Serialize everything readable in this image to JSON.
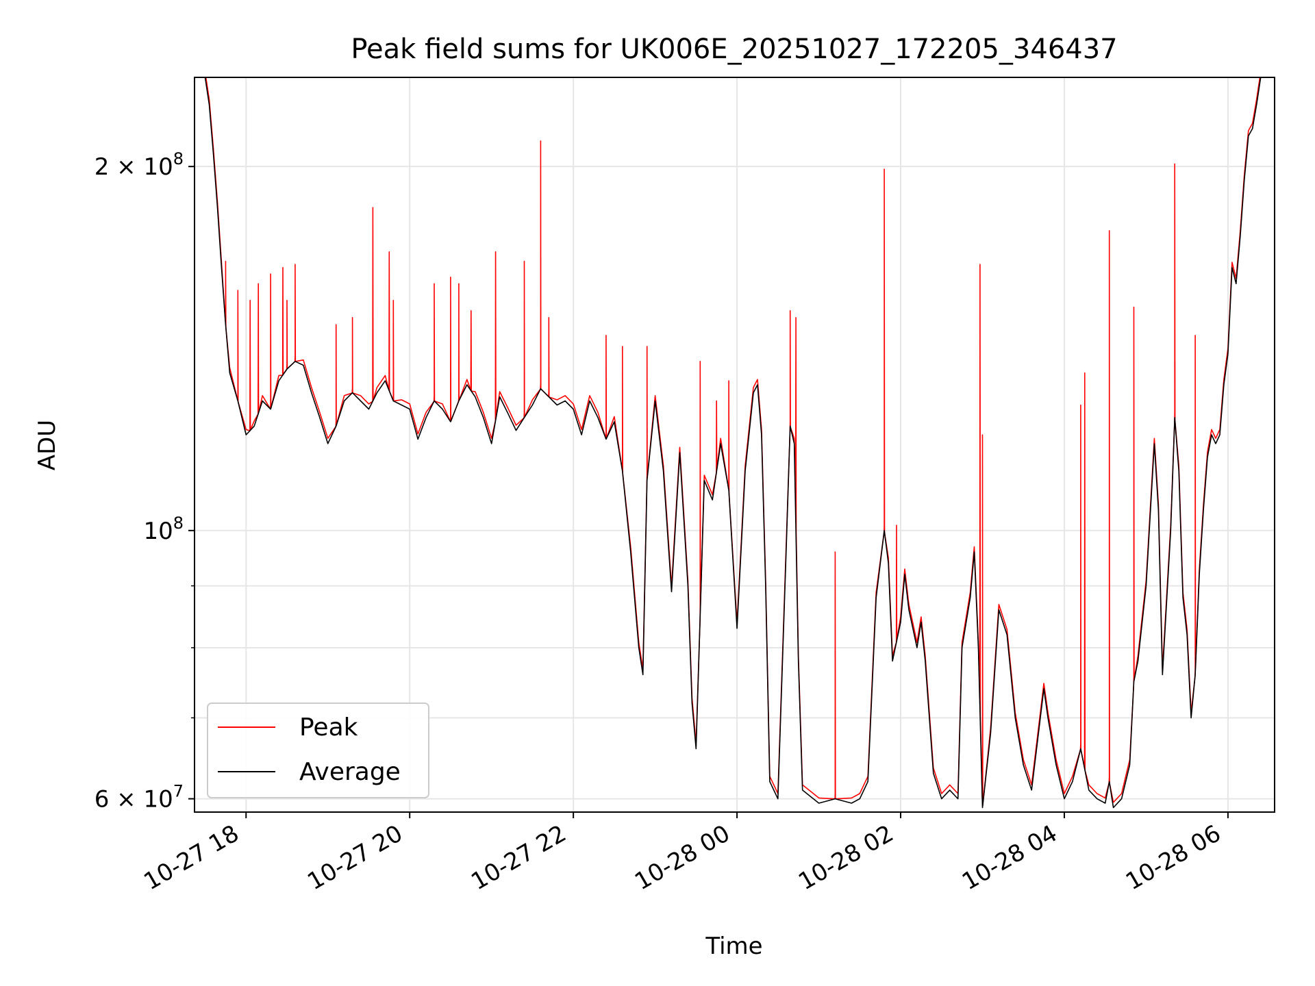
{
  "chart_data": {
    "type": "line",
    "title": "Peak field sums for UK006E_20251027_172205_346437",
    "xlabel": "Time",
    "ylabel": "ADU",
    "yscale": "log",
    "ylim": [
      58500000,
      237000000
    ],
    "xlim_hours": [
      17.37,
      30.57
    ],
    "x_ticks": [
      {
        "hours": 18,
        "label": "10-27 18"
      },
      {
        "hours": 20,
        "label": "10-27 20"
      },
      {
        "hours": 22,
        "label": "10-27 22"
      },
      {
        "hours": 24,
        "label": "10-28 00"
      },
      {
        "hours": 26,
        "label": "10-28 02"
      },
      {
        "hours": 28,
        "label": "10-28 04"
      },
      {
        "hours": 30,
        "label": "10-28 06"
      }
    ],
    "y_ticks": [
      {
        "value": 60000000,
        "base": "6 × 10",
        "exp": "7"
      },
      {
        "value": 100000000,
        "base": "10",
        "exp": "8"
      },
      {
        "value": 200000000,
        "base": "2 × 10",
        "exp": "8"
      }
    ],
    "y_minor_ticks": [
      70000000,
      80000000,
      90000000
    ],
    "grid": true,
    "legend": {
      "position": "bottom-left",
      "entries": [
        {
          "name": "Peak",
          "color": "#ff0000"
        },
        {
          "name": "Average",
          "color": "#000000"
        }
      ]
    },
    "series": [
      {
        "name": "Peak",
        "color": "#ff0000",
        "spikes": [
          [
            17.75,
            167000000
          ],
          [
            17.9,
            158000000
          ],
          [
            18.05,
            155000000
          ],
          [
            18.15,
            160000000
          ],
          [
            18.3,
            163000000
          ],
          [
            18.45,
            165000000
          ],
          [
            18.5,
            155000000
          ],
          [
            18.6,
            166000000
          ],
          [
            19.1,
            148000000
          ],
          [
            19.3,
            150000000
          ],
          [
            19.55,
            185000000
          ],
          [
            19.75,
            170000000
          ],
          [
            19.8,
            155000000
          ],
          [
            20.3,
            160000000
          ],
          [
            20.5,
            162000000
          ],
          [
            20.6,
            160000000
          ],
          [
            20.75,
            152000000
          ],
          [
            21.05,
            170000000
          ],
          [
            21.4,
            167000000
          ],
          [
            21.6,
            210000000
          ],
          [
            21.7,
            150000000
          ],
          [
            22.4,
            145000000
          ],
          [
            22.6,
            142000000
          ],
          [
            22.9,
            142000000
          ],
          [
            23.55,
            138000000
          ],
          [
            23.75,
            128000000
          ],
          [
            23.9,
            133000000
          ],
          [
            24.65,
            152000000
          ],
          [
            24.72,
            150000000
          ],
          [
            25.2,
            96000000
          ],
          [
            25.8,
            199000000
          ],
          [
            25.95,
            101000000
          ],
          [
            26.97,
            166000000
          ],
          [
            27.0,
            120000000
          ],
          [
            28.2,
            127000000
          ],
          [
            28.25,
            135000000
          ],
          [
            28.55,
            177000000
          ],
          [
            28.85,
            153000000
          ],
          [
            29.35,
            201000000
          ],
          [
            29.6,
            145000000
          ]
        ]
      },
      {
        "name": "Average",
        "color": "#000000",
        "points": [
          [
            17.37,
            237000000
          ],
          [
            17.5,
            237000000
          ],
          [
            17.55,
            225000000
          ],
          [
            17.6,
            205000000
          ],
          [
            17.65,
            185000000
          ],
          [
            17.7,
            165000000
          ],
          [
            17.75,
            148000000
          ],
          [
            17.8,
            135000000
          ],
          [
            17.9,
            128000000
          ],
          [
            18.0,
            120000000
          ],
          [
            18.1,
            122000000
          ],
          [
            18.2,
            128000000
          ],
          [
            18.3,
            126000000
          ],
          [
            18.4,
            133000000
          ],
          [
            18.5,
            136000000
          ],
          [
            18.6,
            138000000
          ],
          [
            18.7,
            137000000
          ],
          [
            18.8,
            130000000
          ],
          [
            18.9,
            124000000
          ],
          [
            19.0,
            118000000
          ],
          [
            19.1,
            122000000
          ],
          [
            19.2,
            128000000
          ],
          [
            19.3,
            130000000
          ],
          [
            19.4,
            128000000
          ],
          [
            19.5,
            126000000
          ],
          [
            19.6,
            130000000
          ],
          [
            19.7,
            133000000
          ],
          [
            19.8,
            128000000
          ],
          [
            19.9,
            127000000
          ],
          [
            20.0,
            126000000
          ],
          [
            20.1,
            119000000
          ],
          [
            20.2,
            124000000
          ],
          [
            20.3,
            128000000
          ],
          [
            20.4,
            126000000
          ],
          [
            20.5,
            123000000
          ],
          [
            20.6,
            128000000
          ],
          [
            20.7,
            132000000
          ],
          [
            20.8,
            129000000
          ],
          [
            20.9,
            124000000
          ],
          [
            21.0,
            118000000
          ],
          [
            21.1,
            129000000
          ],
          [
            21.2,
            125000000
          ],
          [
            21.3,
            121000000
          ],
          [
            21.4,
            124000000
          ],
          [
            21.5,
            127000000
          ],
          [
            21.6,
            131000000
          ],
          [
            21.7,
            129000000
          ],
          [
            21.8,
            127000000
          ],
          [
            21.9,
            128000000
          ],
          [
            22.0,
            126000000
          ],
          [
            22.1,
            120000000
          ],
          [
            22.2,
            128000000
          ],
          [
            22.3,
            124000000
          ],
          [
            22.4,
            119000000
          ],
          [
            22.5,
            123000000
          ],
          [
            22.6,
            112000000
          ],
          [
            22.7,
            96000000
          ],
          [
            22.8,
            80000000
          ],
          [
            22.85,
            76000000
          ],
          [
            22.9,
            110000000
          ],
          [
            23.0,
            128000000
          ],
          [
            23.1,
            112000000
          ],
          [
            23.2,
            89000000
          ],
          [
            23.3,
            116000000
          ],
          [
            23.4,
            90000000
          ],
          [
            23.45,
            72000000
          ],
          [
            23.5,
            66000000
          ],
          [
            23.55,
            85000000
          ],
          [
            23.6,
            110000000
          ],
          [
            23.7,
            106000000
          ],
          [
            23.8,
            118000000
          ],
          [
            23.9,
            108000000
          ],
          [
            24.0,
            83000000
          ],
          [
            24.1,
            112000000
          ],
          [
            24.2,
            130000000
          ],
          [
            24.25,
            132000000
          ],
          [
            24.3,
            120000000
          ],
          [
            24.35,
            90000000
          ],
          [
            24.4,
            62000000
          ],
          [
            24.5,
            60000000
          ],
          [
            24.6,
            96000000
          ],
          [
            24.65,
            122000000
          ],
          [
            24.7,
            118000000
          ],
          [
            24.75,
            78000000
          ],
          [
            24.8,
            61000000
          ],
          [
            25.0,
            59500000
          ],
          [
            25.2,
            60000000
          ],
          [
            25.4,
            59500000
          ],
          [
            25.5,
            60000000
          ],
          [
            25.6,
            62000000
          ],
          [
            25.7,
            88000000
          ],
          [
            25.8,
            100000000
          ],
          [
            25.85,
            94000000
          ],
          [
            25.9,
            78000000
          ],
          [
            26.0,
            84000000
          ],
          [
            26.05,
            92000000
          ],
          [
            26.1,
            86000000
          ],
          [
            26.2,
            80000000
          ],
          [
            26.25,
            84000000
          ],
          [
            26.3,
            78000000
          ],
          [
            26.4,
            63000000
          ],
          [
            26.5,
            60000000
          ],
          [
            26.6,
            61000000
          ],
          [
            26.7,
            60000000
          ],
          [
            26.75,
            80000000
          ],
          [
            26.85,
            88000000
          ],
          [
            26.9,
            96000000
          ],
          [
            26.95,
            80000000
          ],
          [
            27.0,
            59000000
          ],
          [
            27.1,
            68000000
          ],
          [
            27.2,
            86000000
          ],
          [
            27.3,
            82000000
          ],
          [
            27.4,
            70000000
          ],
          [
            27.5,
            64000000
          ],
          [
            27.6,
            61000000
          ],
          [
            27.65,
            65000000
          ],
          [
            27.75,
            74000000
          ],
          [
            27.8,
            70000000
          ],
          [
            27.9,
            64000000
          ],
          [
            28.0,
            60000000
          ],
          [
            28.1,
            62000000
          ],
          [
            28.2,
            66000000
          ],
          [
            28.3,
            61000000
          ],
          [
            28.4,
            60000000
          ],
          [
            28.5,
            59500000
          ],
          [
            28.55,
            62000000
          ],
          [
            28.6,
            59000000
          ],
          [
            28.7,
            60000000
          ],
          [
            28.8,
            64000000
          ],
          [
            28.85,
            75000000
          ],
          [
            28.9,
            78000000
          ],
          [
            29.0,
            90000000
          ],
          [
            29.1,
            118000000
          ],
          [
            29.15,
            104000000
          ],
          [
            29.2,
            76000000
          ],
          [
            29.3,
            100000000
          ],
          [
            29.35,
            124000000
          ],
          [
            29.4,
            112000000
          ],
          [
            29.45,
            88000000
          ],
          [
            29.5,
            82000000
          ],
          [
            29.55,
            70000000
          ],
          [
            29.6,
            76000000
          ],
          [
            29.65,
            92000000
          ],
          [
            29.7,
            104000000
          ],
          [
            29.75,
            115000000
          ],
          [
            29.8,
            120000000
          ],
          [
            29.85,
            118000000
          ],
          [
            29.9,
            120000000
          ],
          [
            29.95,
            132000000
          ],
          [
            30.0,
            140000000
          ],
          [
            30.05,
            165000000
          ],
          [
            30.1,
            160000000
          ],
          [
            30.15,
            175000000
          ],
          [
            30.2,
            195000000
          ],
          [
            30.25,
            212000000
          ],
          [
            30.3,
            215000000
          ],
          [
            30.35,
            225000000
          ],
          [
            30.4,
            237000000
          ],
          [
            30.57,
            237000000
          ]
        ]
      }
    ]
  }
}
